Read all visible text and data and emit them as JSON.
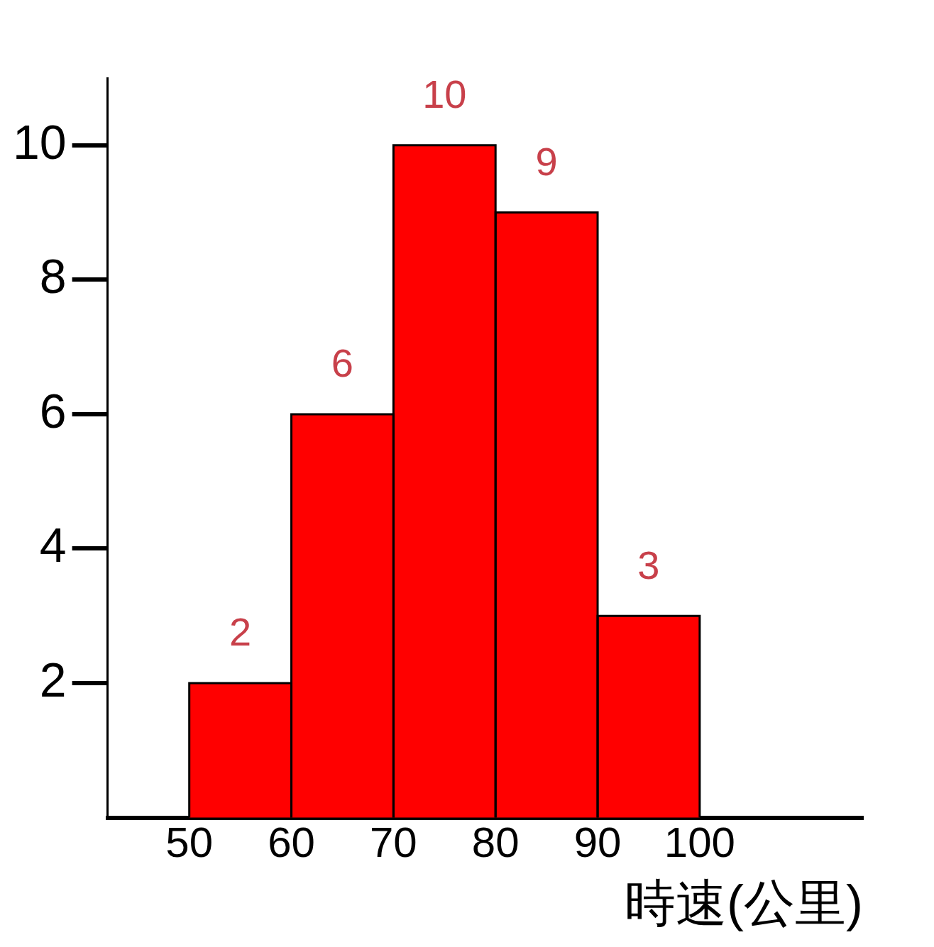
{
  "chart_data": {
    "type": "histogram",
    "bins": [
      50,
      60,
      70,
      80,
      90,
      100
    ],
    "values": [
      2,
      6,
      10,
      9,
      3
    ],
    "color": "#ff0000",
    "xlabel": "時速(公里)",
    "xlim": [
      42,
      116
    ],
    "xticks": [
      50,
      60,
      70,
      80,
      90,
      100
    ],
    "ylim": [
      0,
      11
    ],
    "yticks": [
      2,
      4,
      6,
      8,
      10
    ],
    "data_labels": true,
    "grid": false,
    "legend": false
  }
}
